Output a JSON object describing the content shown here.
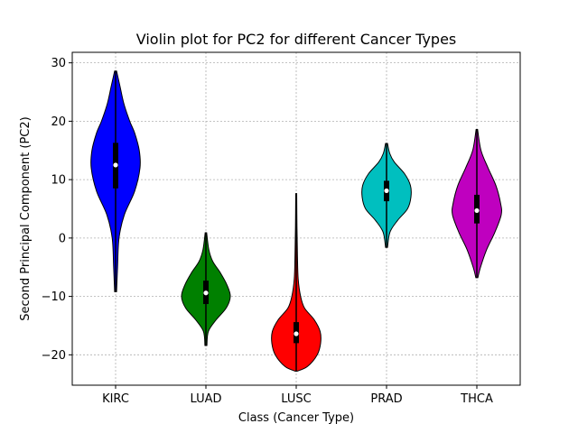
{
  "chart_data": {
    "type": "violin",
    "title": "Violin plot for PC2 for different Cancer Types",
    "xlabel": "Class (Cancer Type)",
    "ylabel": "Second Principal Component (PC2)",
    "ylim": [
      -25.2,
      31.8
    ],
    "yticks": [
      -20,
      -10,
      0,
      10,
      20,
      30
    ],
    "grid": true,
    "categories": [
      "KIRC",
      "LUAD",
      "LUSC",
      "PRAD",
      "THCA"
    ],
    "series": [
      {
        "category": "KIRC",
        "color": "#0000ff",
        "min": -9.2,
        "max": 28.6,
        "q1": 8.5,
        "median": 12.5,
        "q3": 16.3,
        "profile": [
          [
            -9.2,
            0.04
          ],
          [
            -5,
            0.08
          ],
          [
            0,
            0.14
          ],
          [
            4,
            0.36
          ],
          [
            8,
            0.78
          ],
          [
            12,
            1.0
          ],
          [
            15,
            0.97
          ],
          [
            18,
            0.78
          ],
          [
            20,
            0.58
          ],
          [
            23,
            0.34
          ],
          [
            26,
            0.18
          ],
          [
            28.6,
            0.04
          ]
        ]
      },
      {
        "category": "LUAD",
        "color": "#008000",
        "min": -18.4,
        "max": 0.9,
        "q1": -11.3,
        "median": -9.4,
        "q3": -7.3,
        "profile": [
          [
            -18.4,
            0.04
          ],
          [
            -16,
            0.1
          ],
          [
            -14,
            0.42
          ],
          [
            -12,
            0.83
          ],
          [
            -10,
            1.0
          ],
          [
            -8,
            0.86
          ],
          [
            -6,
            0.6
          ],
          [
            -4,
            0.28
          ],
          [
            -2,
            0.12
          ],
          [
            0.9,
            0.03
          ]
        ]
      },
      {
        "category": "LUSC",
        "color": "#ff0000",
        "min": -22.8,
        "max": 7.6,
        "q1": -18.0,
        "median": -16.4,
        "q3": -14.4,
        "profile": [
          [
            -22.8,
            0.04
          ],
          [
            -22,
            0.46
          ],
          [
            -20,
            0.86
          ],
          [
            -18,
            1.0
          ],
          [
            -16,
            0.98
          ],
          [
            -14,
            0.74
          ],
          [
            -12,
            0.34
          ],
          [
            -10,
            0.18
          ],
          [
            -7,
            0.08
          ],
          [
            -3,
            0.05
          ],
          [
            2,
            0.03
          ],
          [
            7.6,
            0.02
          ]
        ]
      },
      {
        "category": "PRAD",
        "color": "#00bfbf",
        "min": -1.6,
        "max": 16.2,
        "q1": 6.3,
        "median": 8.1,
        "q3": 9.8,
        "profile": [
          [
            -1.6,
            0.04
          ],
          [
            1,
            0.14
          ],
          [
            3,
            0.45
          ],
          [
            5,
            0.86
          ],
          [
            7,
            1.0
          ],
          [
            9,
            0.98
          ],
          [
            11,
            0.74
          ],
          [
            13,
            0.32
          ],
          [
            14.5,
            0.13
          ],
          [
            16.2,
            0.04
          ]
        ]
      },
      {
        "category": "THCA",
        "color": "#bf00bf",
        "min": -6.8,
        "max": 18.6,
        "q1": 2.5,
        "median": 4.7,
        "q3": 7.4,
        "profile": [
          [
            -6.8,
            0.04
          ],
          [
            -5,
            0.15
          ],
          [
            -2,
            0.4
          ],
          [
            1,
            0.74
          ],
          [
            4,
            1.0
          ],
          [
            6,
            0.97
          ],
          [
            9,
            0.78
          ],
          [
            12,
            0.46
          ],
          [
            15,
            0.17
          ],
          [
            18.6,
            0.03
          ]
        ]
      }
    ]
  }
}
